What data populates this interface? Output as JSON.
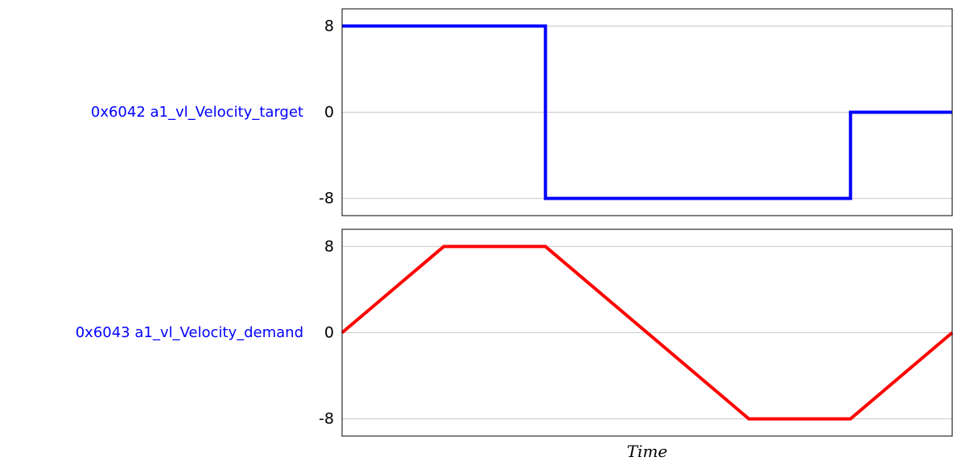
{
  "chart_data": [
    {
      "type": "line",
      "step": true,
      "ylabel": "0x6042 a1_vl_Velocity_target",
      "ylabel_color": "#0000ff",
      "yticks": [
        "8",
        "0",
        "-8"
      ],
      "ytick_values": [
        8,
        0,
        -8
      ],
      "ylim": [
        -9.6,
        9.6
      ],
      "xlim": [
        0,
        12
      ],
      "grid": "horizontal",
      "series": [
        {
          "color": "#0000ff",
          "x": [
            0,
            4,
            4,
            10,
            10,
            12
          ],
          "y": [
            8,
            8,
            -8,
            -8,
            0,
            0
          ]
        }
      ]
    },
    {
      "type": "line",
      "ylabel": "0x6043 a1_vl_Velocity_demand",
      "ylabel_color": "#0000ff",
      "yticks": [
        "8",
        "0",
        "-8"
      ],
      "ytick_values": [
        8,
        0,
        -8
      ],
      "ylim": [
        -9.6,
        9.6
      ],
      "xlim": [
        0,
        12
      ],
      "grid": "horizontal",
      "xlabel": "Time",
      "series": [
        {
          "color": "#ff0000",
          "x": [
            0,
            2,
            4,
            8,
            10,
            12
          ],
          "y": [
            0,
            8,
            8,
            -8,
            -8,
            0
          ]
        }
      ]
    }
  ]
}
